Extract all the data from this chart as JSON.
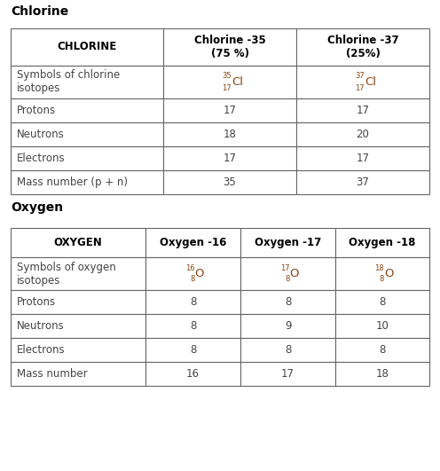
{
  "title1": "Chlorine",
  "title2": "Oxygen",
  "cl_headers": [
    "CHLORINE",
    "Chlorine -35\n(75 %)",
    "Chlorine -37\n(25%)"
  ],
  "cl_rows": [
    [
      "Symbols of chlorine\nisotopes",
      "cl35_symbol",
      "cl37_symbol"
    ],
    [
      "Protons",
      "17",
      "17"
    ],
    [
      "Neutrons",
      "18",
      "20"
    ],
    [
      "Electrons",
      "17",
      "17"
    ],
    [
      "Mass number (p + n)",
      "35",
      "37"
    ]
  ],
  "ox_headers": [
    "OXYGEN",
    "Oxygen -16",
    "Oxygen -17",
    "Oxygen -18"
  ],
  "ox_rows": [
    [
      "Symbols of oxygen\nisotopes",
      "o16_symbol",
      "o17_symbol",
      "o18_symbol"
    ],
    [
      "Protons",
      "8",
      "8",
      "8"
    ],
    [
      "Neutrons",
      "8",
      "9",
      "10"
    ],
    [
      "Electrons",
      "8",
      "8",
      "8"
    ],
    [
      "Mass number",
      "16",
      "17",
      "18"
    ]
  ],
  "header_text_color": "#000000",
  "row_text_color": "#444444",
  "border_color": "#666666",
  "symbol_color": "#8B4513",
  "title_fontsize": 10,
  "header_fontsize": 8.5,
  "cell_fontsize": 8.5,
  "bg_color": "#ffffff",
  "fig_width": 4.96,
  "fig_height": 5.31,
  "dpi": 100
}
